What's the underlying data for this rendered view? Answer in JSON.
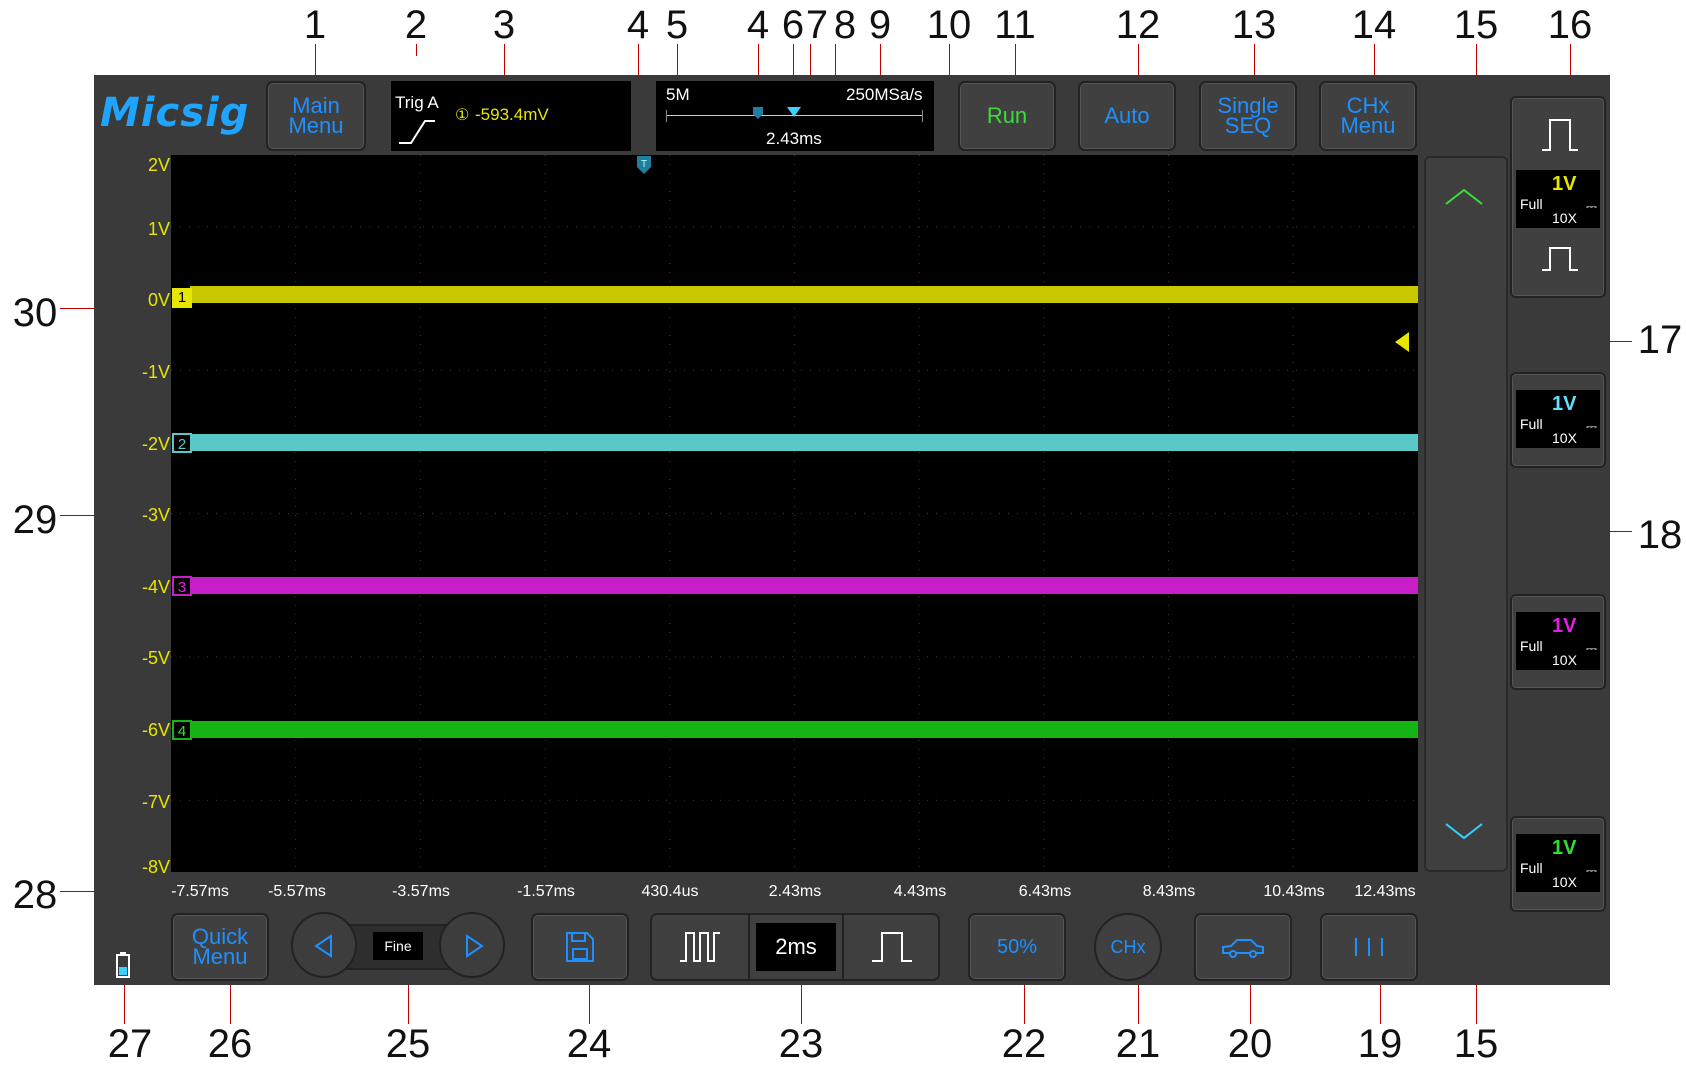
{
  "callouts": {
    "top": [
      "1",
      "2",
      "3",
      "4",
      "5",
      "4",
      "6",
      "7",
      "8",
      "9",
      "10",
      "11",
      "12",
      "13",
      "14",
      "15",
      "16"
    ],
    "bottom": [
      "27",
      "26",
      "25",
      "24",
      "23",
      "22",
      "21",
      "20",
      "19",
      "15"
    ],
    "left": [
      "30",
      "29",
      "28"
    ],
    "right": [
      "17",
      "18"
    ]
  },
  "header": {
    "logo": "Micsig",
    "main_menu": "Main Menu",
    "trigger": {
      "label": "Trig A",
      "source": "①",
      "level": "-593.4mV"
    },
    "memory": "5M",
    "sample_rate": "250MSa/s",
    "position": "2.43ms",
    "trigger_marker": "T",
    "run": "Run",
    "auto": "Auto",
    "single_seq": "Single SEQ",
    "chx_menu": "CHx Menu"
  },
  "y_axis": [
    "2V",
    "1V",
    "0V",
    "-1V",
    "-2V",
    "-3V",
    "-4V",
    "-5V",
    "-6V",
    "-7V",
    "-8V"
  ],
  "x_axis": [
    "-7.57ms",
    "-5.57ms",
    "-3.57ms",
    "-1.57ms",
    "430.4us",
    "2.43ms",
    "4.43ms",
    "6.43ms",
    "8.43ms",
    "10.43ms",
    "12.43ms"
  ],
  "channels": [
    {
      "id": "1",
      "color": "#c8c800",
      "scale_color": "#e6e600",
      "scale": "1V",
      "bandwidth": "Full",
      "probe": "10X",
      "offset_v": 0
    },
    {
      "id": "2",
      "color": "#5bc8c8",
      "scale_color": "#5fe0ff",
      "scale": "1V",
      "bandwidth": "Full",
      "probe": "10X",
      "offset_v": -2
    },
    {
      "id": "3",
      "color": "#c81ec8",
      "scale_color": "#e020e0",
      "scale": "1V",
      "bandwidth": "Full",
      "probe": "10X",
      "offset_v": -4
    },
    {
      "id": "4",
      "color": "#14b414",
      "scale_color": "#30e030",
      "scale": "1V",
      "bandwidth": "Full",
      "probe": "10X",
      "offset_v": -6
    }
  ],
  "dc_symbol": "⎓",
  "bottom_bar": {
    "quick_menu": "Quick Menu",
    "fine": "Fine",
    "timebase": "2ms",
    "fifty_percent": "50%",
    "chx": "CHx"
  },
  "icons": [
    "chevron-up-icon",
    "chevron-down-icon",
    "pulse-icon",
    "save-icon",
    "car-icon",
    "battery-icon",
    "arrow-left-icon",
    "arrow-right-icon",
    "cursor-bars-icon"
  ]
}
